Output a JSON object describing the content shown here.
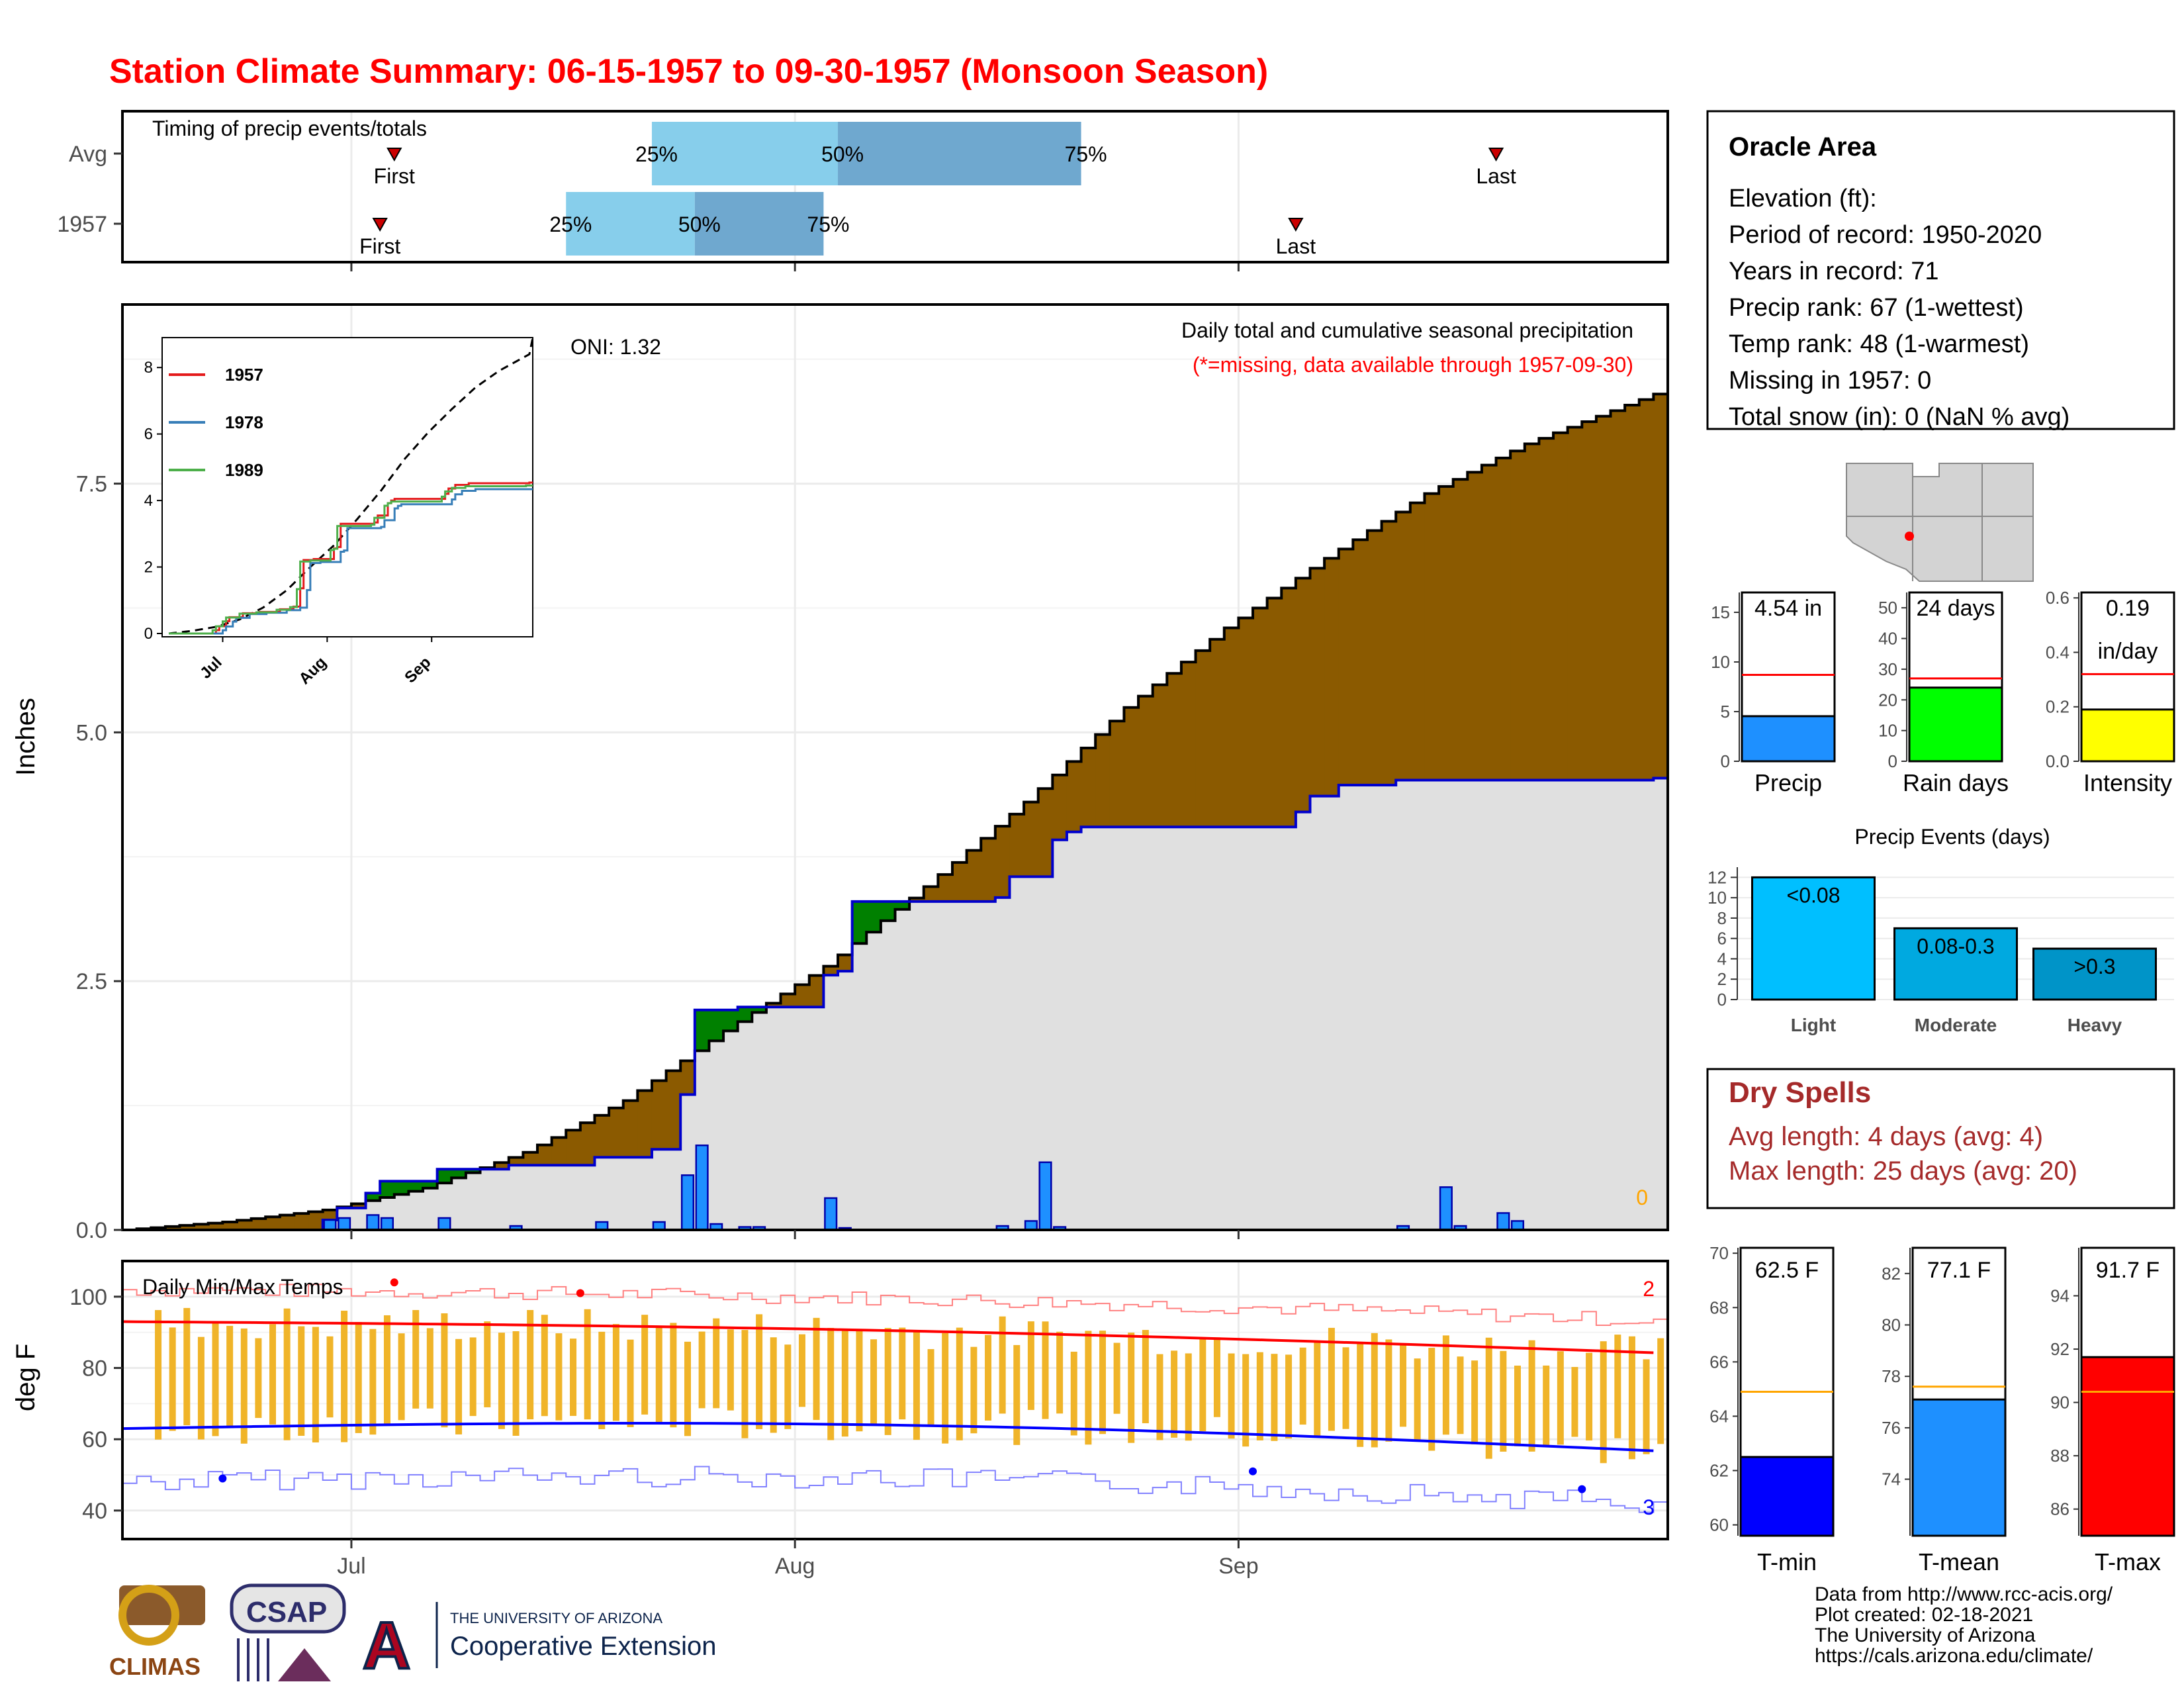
{
  "title": "Station Climate Summary: 06-15-1957 to 09-30-1957 (Monsoon Season)",
  "colors": {
    "title": "#ff0000",
    "precip_fill": "#8b5a00",
    "surplus_fill": "#008000",
    "cumulative_grey": "#e0e0e0",
    "daily_bar": "#1e90ff",
    "light_q": "#87ceeb",
    "dark_q": "#6fa8cf",
    "tmax_line": "#ff0000",
    "tmin_line": "#0000ff",
    "temp_bar": "#f0b429",
    "dry_spell": "#a52a2a"
  },
  "timing": {
    "label": "Timing of precip events/totals",
    "rows": [
      {
        "name": "Avg",
        "first": "First",
        "last": "Last",
        "q25": "25%",
        "q50": "50%",
        "q75": "75%",
        "first_day": 19,
        "last_day": 96,
        "q25_day": 37,
        "q50_day": 50,
        "q75_day": 67
      },
      {
        "name": "1957",
        "first": "First",
        "last": "Last",
        "q25": "25%",
        "q50": "50%",
        "q75": "75%",
        "first_day": 18,
        "last_day": 82,
        "q25_day": 31,
        "q50_day": 40,
        "q75_day": 49
      }
    ]
  },
  "info": {
    "station": "Oracle Area",
    "lines": [
      "Elevation (ft):",
      "Period of record: 1950-2020",
      "Years in record: 71",
      "Precip rank: 67 (1-wettest)",
      "Temp rank: 48 (1-warmest)",
      "Missing in 1957: 0",
      "Total snow (in): 0 (NaN % avg)"
    ]
  },
  "main": {
    "ylabel": "Inches",
    "oni": "ONI: 1.32",
    "legend_title": "Daily total and cumulative seasonal precipitation",
    "missing_note": "(*=missing, data available through 1957-09-30)",
    "missing_count": "0",
    "yticks": [
      "0.0",
      "2.5",
      "5.0",
      "7.5"
    ],
    "xticks": [
      "Jul",
      "Aug",
      "Sep"
    ]
  },
  "inset": {
    "yticks": [
      "0",
      "2",
      "4",
      "6",
      "8"
    ],
    "xticks": [
      "Jul",
      "Aug",
      "Sep"
    ],
    "legend": [
      {
        "name": "1957",
        "color": "#e41a1c"
      },
      {
        "name": "1978",
        "color": "#377eb8"
      },
      {
        "name": "1989",
        "color": "#4daf4a"
      }
    ]
  },
  "temps": {
    "label": "Daily Min/Max Temps",
    "ylabel": "deg F",
    "yticks": [
      "40",
      "60",
      "80",
      "100"
    ],
    "record_high_count": "2",
    "record_low_count": "3"
  },
  "summary_bars": [
    {
      "name": "Precip",
      "value_label": "4.54 in",
      "value": 4.54,
      "avg": 8.7,
      "max": 17,
      "ticks": [
        "0",
        "5",
        "10",
        "15"
      ],
      "color": "#1e90ff"
    },
    {
      "name": "Rain days",
      "value_label": "24 days",
      "value": 24,
      "avg": 27,
      "max": 55,
      "ticks": [
        "0",
        "10",
        "20",
        "30",
        "40",
        "50"
      ],
      "color": "#00ff00"
    },
    {
      "name": "Intensity",
      "value_label": "0.19",
      "value_label2": "in/day",
      "value": 0.19,
      "avg": 0.32,
      "max": 0.62,
      "ticks": [
        "0.0",
        "0.2",
        "0.4",
        "0.6"
      ],
      "color": "#ffff00"
    }
  ],
  "precip_events": {
    "title": "Precip Events (days)",
    "yticks": [
      "0",
      "2",
      "4",
      "6",
      "8",
      "10",
      "12"
    ],
    "bars": [
      {
        "name": "Light",
        "label": "<0.08",
        "value": 12,
        "color": "#00bfff"
      },
      {
        "name": "Moderate",
        "label": "0.08-0.3",
        "value": 7,
        "color": "#00a9e0"
      },
      {
        "name": "Heavy",
        "label": ">0.3",
        "value": 5,
        "color": "#0094c8"
      }
    ]
  },
  "dry_spells": {
    "title": "Dry Spells",
    "avg": "Avg length: 4 days (avg: 4)",
    "max": "Max length: 25 days (avg: 20)"
  },
  "temp_bars": [
    {
      "name": "T-min",
      "value_label": "62.5 F",
      "value": 62.5,
      "avg": 64.9,
      "min": 59.6,
      "max": 70.2,
      "ticks": [
        "60",
        "62",
        "64",
        "66",
        "68",
        "70"
      ],
      "color": "#0000ff"
    },
    {
      "name": "T-mean",
      "value_label": "77.1 F",
      "value": 77.1,
      "avg": 77.6,
      "min": 71.8,
      "max": 83.0,
      "ticks": [
        "74",
        "76",
        "78",
        "80",
        "82"
      ],
      "color": "#1e90ff"
    },
    {
      "name": "T-max",
      "value_label": "91.7 F",
      "value": 91.7,
      "avg": 90.4,
      "min": 85.0,
      "max": 95.8,
      "ticks": [
        "86",
        "88",
        "90",
        "92",
        "94"
      ],
      "color": "#ff0000"
    }
  ],
  "footer": {
    "lines": [
      "Data from http://www.rcc-acis.org/",
      "Plot created: 02-18-2021",
      "The University of Arizona",
      "https://cals.arizona.edu/climate/"
    ],
    "logo_climas": "CLIMAS",
    "logo_csap": "CSAP",
    "logo_ua_top": "THE UNIVERSITY OF ARIZONA",
    "logo_ua_bottom": "Cooperative Extension"
  },
  "chart_data": {
    "type": "area",
    "title": "Station Climate Summary: 06-15-1957 to 09-30-1957 (Monsoon Season)",
    "ylabel": "Inches",
    "ylim": [
      0,
      9.3
    ],
    "x_start": "1957-06-15",
    "x_end": "1957-09-30",
    "daily_precip": [
      {
        "date": "1957-06-29",
        "value": 0.1
      },
      {
        "date": "1957-06-30",
        "value": 0.12
      },
      {
        "date": "1957-07-02",
        "value": 0.15
      },
      {
        "date": "1957-07-03",
        "value": 0.12
      },
      {
        "date": "1957-07-07",
        "value": 0.12
      },
      {
        "date": "1957-07-12",
        "value": 0.04
      },
      {
        "date": "1957-07-18",
        "value": 0.08
      },
      {
        "date": "1957-07-22",
        "value": 0.08
      },
      {
        "date": "1957-07-24",
        "value": 0.55
      },
      {
        "date": "1957-07-25",
        "value": 0.85
      },
      {
        "date": "1957-07-26",
        "value": 0.06
      },
      {
        "date": "1957-07-28",
        "value": 0.03
      },
      {
        "date": "1957-07-29",
        "value": 0.03
      },
      {
        "date": "1957-08-03",
        "value": 0.32
      },
      {
        "date": "1957-08-04",
        "value": 0.02
      },
      {
        "date": "1957-08-15",
        "value": 0.04
      },
      {
        "date": "1957-08-17",
        "value": 0.09
      },
      {
        "date": "1957-08-18",
        "value": 0.68
      },
      {
        "date": "1957-08-19",
        "value": 0.03
      },
      {
        "date": "1957-09-12",
        "value": 0.04
      },
      {
        "date": "1957-09-15",
        "value": 0.43
      },
      {
        "date": "1957-09-16",
        "value": 0.04
      },
      {
        "date": "1957-09-19",
        "value": 0.17
      },
      {
        "date": "1957-09-20",
        "value": 0.09
      }
    ],
    "cumulative_1957": [
      {
        "date": "1957-06-15",
        "value": 0.0
      },
      {
        "date": "1957-06-29",
        "value": 0.1
      },
      {
        "date": "1957-06-30",
        "value": 0.22
      },
      {
        "date": "1957-07-02",
        "value": 0.37
      },
      {
        "date": "1957-07-03",
        "value": 0.49
      },
      {
        "date": "1957-07-07",
        "value": 0.61
      },
      {
        "date": "1957-07-12",
        "value": 0.65
      },
      {
        "date": "1957-07-18",
        "value": 0.73
      },
      {
        "date": "1957-07-22",
        "value": 0.81
      },
      {
        "date": "1957-07-24",
        "value": 1.36
      },
      {
        "date": "1957-07-25",
        "value": 2.21
      },
      {
        "date": "1957-07-28",
        "value": 2.24
      },
      {
        "date": "1957-08-03",
        "value": 2.56
      },
      {
        "date": "1957-08-04",
        "value": 2.6
      },
      {
        "date": "1957-08-05",
        "value": 3.3
      },
      {
        "date": "1957-08-15",
        "value": 3.34
      },
      {
        "date": "1957-08-16",
        "value": 3.55
      },
      {
        "date": "1957-08-17",
        "value": 3.55
      },
      {
        "date": "1957-08-19",
        "value": 3.92
      },
      {
        "date": "1957-08-20",
        "value": 4.0
      },
      {
        "date": "1957-08-21",
        "value": 4.05
      },
      {
        "date": "1957-08-22",
        "value": 4.05
      },
      {
        "date": "1957-09-05",
        "value": 4.2
      },
      {
        "date": "1957-09-06",
        "value": 4.36
      },
      {
        "date": "1957-09-08",
        "value": 4.47
      },
      {
        "date": "1957-09-12",
        "value": 4.52
      },
      {
        "date": "1957-09-30",
        "value": 4.54
      }
    ],
    "cumulative_avg": [
      {
        "date": "1957-06-15",
        "value": 0.0
      },
      {
        "date": "1957-06-22",
        "value": 0.08
      },
      {
        "date": "1957-06-29",
        "value": 0.2
      },
      {
        "date": "1957-07-06",
        "value": 0.42
      },
      {
        "date": "1957-07-13",
        "value": 0.78
      },
      {
        "date": "1957-07-20",
        "value": 1.3
      },
      {
        "date": "1957-07-27",
        "value": 2.0
      },
      {
        "date": "1957-08-03",
        "value": 2.65
      },
      {
        "date": "1957-08-10",
        "value": 3.45
      },
      {
        "date": "1957-08-17",
        "value": 4.3
      },
      {
        "date": "1957-08-24",
        "value": 5.25
      },
      {
        "date": "1957-08-31",
        "value": 6.05
      },
      {
        "date": "1957-09-07",
        "value": 6.75
      },
      {
        "date": "1957-09-14",
        "value": 7.4
      },
      {
        "date": "1957-09-21",
        "value": 7.9
      },
      {
        "date": "1957-09-30",
        "value": 8.4
      }
    ],
    "tmax_daily_avg_start": 93,
    "tmax_daily_avg_end": 84,
    "tmin_daily_avg_start": 63,
    "tmin_daily_avg_end": 57
  }
}
